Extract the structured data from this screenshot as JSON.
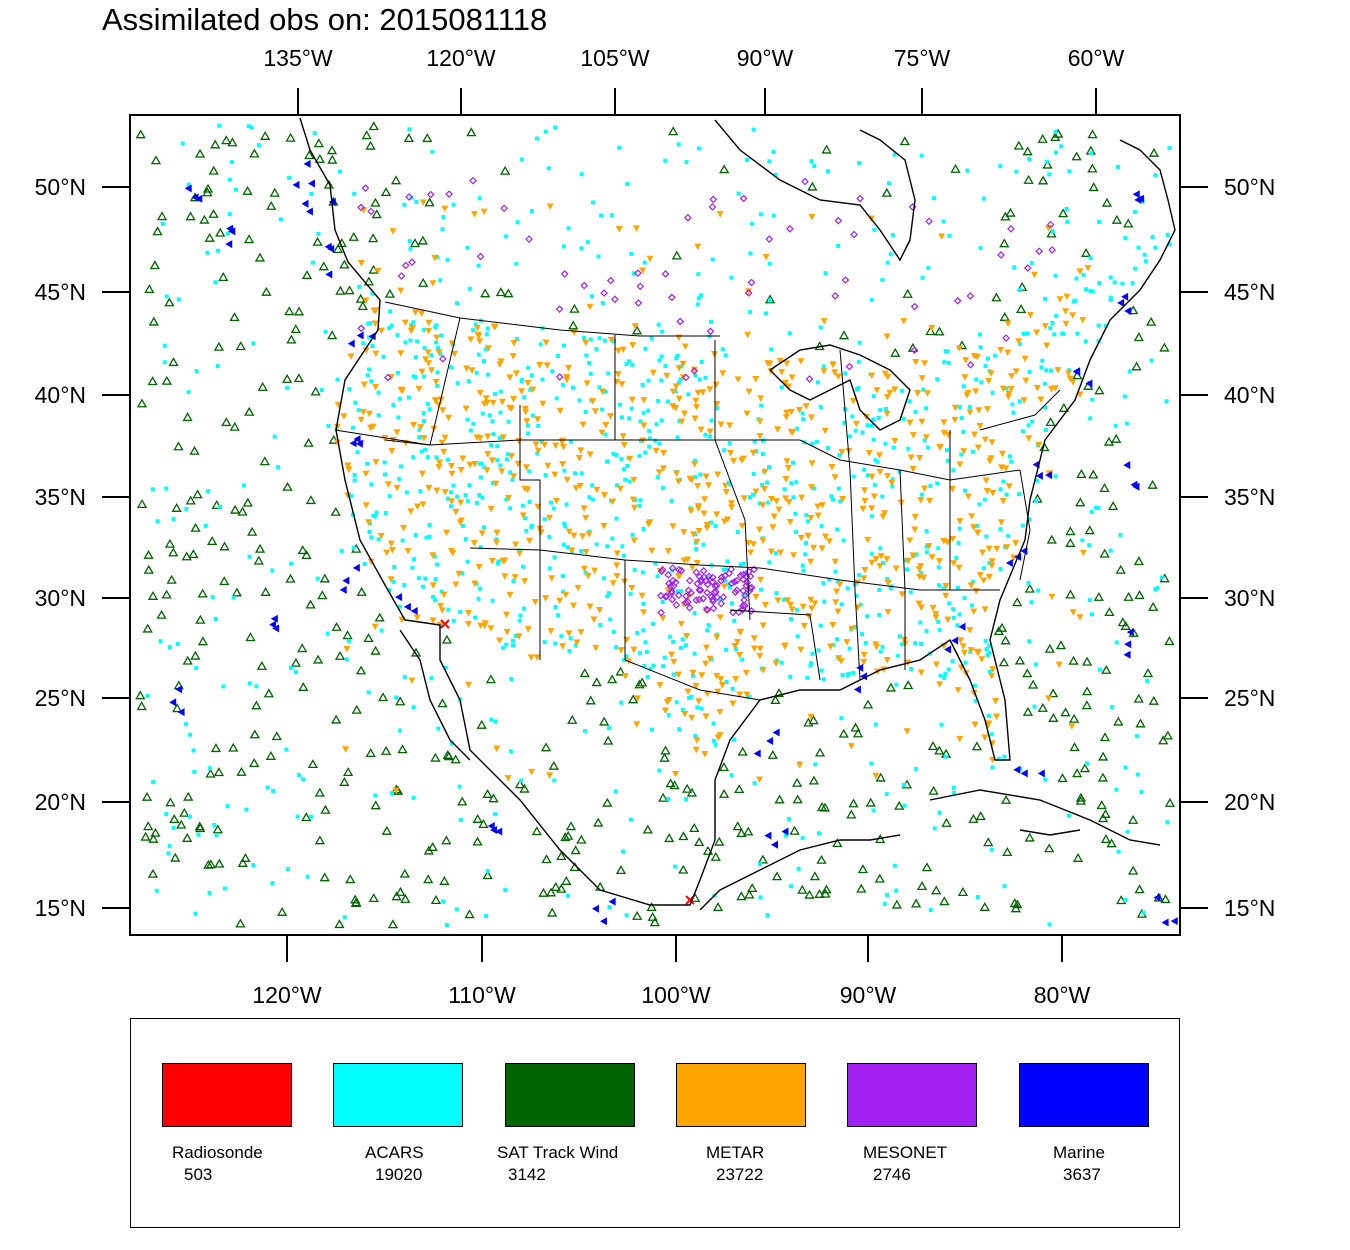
{
  "title": "Assimilated obs on: 2015081118",
  "top_lon_labels": [
    "135°W",
    "120°W",
    "105°W",
    "90°W",
    "75°W",
    "60°W"
  ],
  "bottom_lon_labels": [
    "120°W",
    "110°W",
    "100°W",
    "90°W",
    "80°W"
  ],
  "lat_labels": [
    "50°N",
    "45°N",
    "40°N",
    "35°N",
    "30°N",
    "25°N",
    "20°N",
    "15°N"
  ],
  "legend": [
    {
      "name": "Radiosonde",
      "count": "503",
      "color": "#ff0000"
    },
    {
      "name": "ACARS",
      "count": "19020",
      "color": "#00ffff"
    },
    {
      "name": "SAT Track Wind",
      "count": "3142",
      "color": "#006400"
    },
    {
      "name": "METAR",
      "count": "23722",
      "color": "#ffa500"
    },
    {
      "name": "MESONET",
      "count": "2746",
      "color": "#a020f0"
    },
    {
      "name": "Marine",
      "count": "3637",
      "color": "#0000ff"
    }
  ],
  "colors": {
    "radiosonde": "#ff0000",
    "acars": "#00ffff",
    "sat_track_wind": "#006400",
    "metar": "#ffa500",
    "mesonet": "#a020f0",
    "marine": "#0000ff"
  },
  "icons": {
    "radiosonde": "x-marker-icon",
    "acars": "square-dot-icon",
    "sat_track_wind": "triangle-outline-icon",
    "metar": "down-triangle-icon",
    "mesonet": "diamond-icon",
    "marine": "left-triangle-icon"
  }
}
